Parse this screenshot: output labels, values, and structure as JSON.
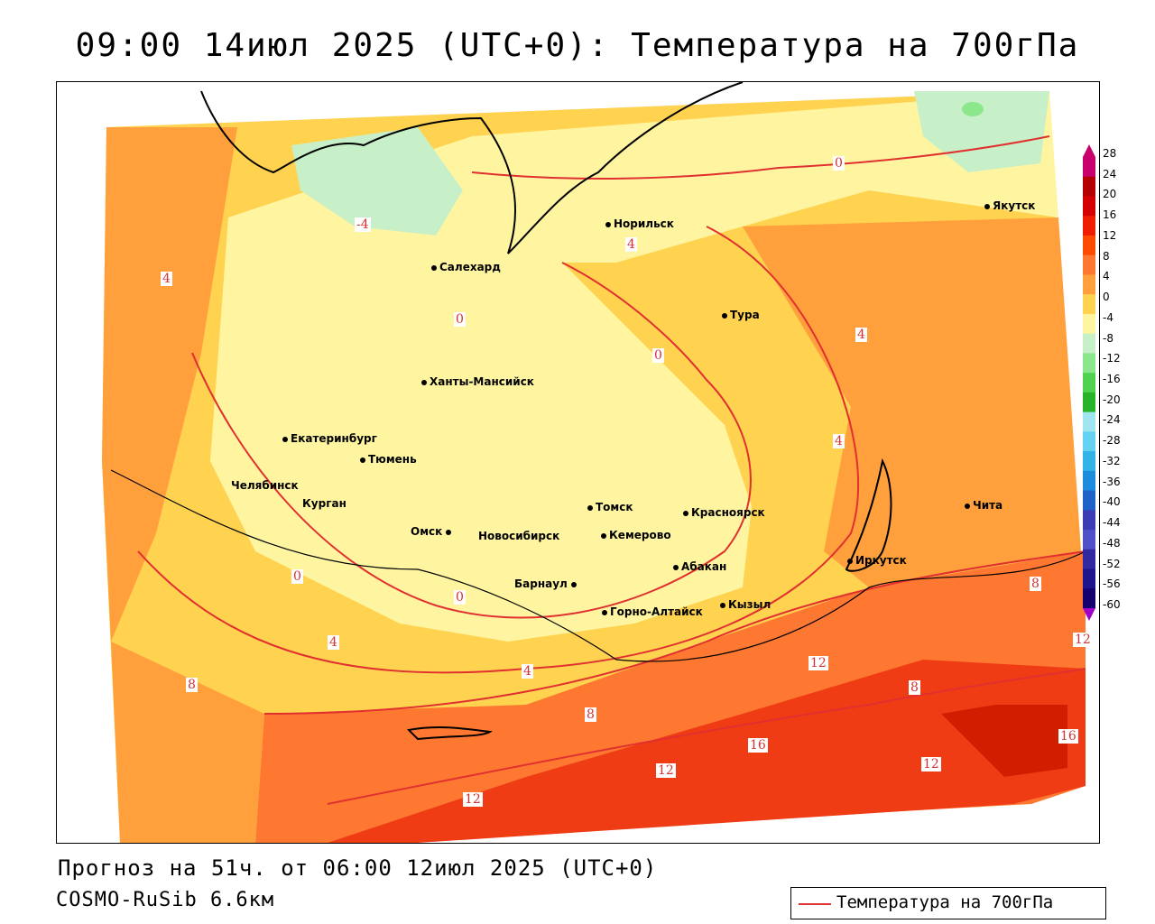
{
  "title": "09:00 14июл 2025 (UTC+0): Температура на 700гПа",
  "forecast_line": "Прогноз на 51ч. от 06:00 12июл 2025 (UTC+0)",
  "model_line": "COSMO-RuSib 6.6км",
  "legend": {
    "label": "Температура на 700гПа",
    "line_color": "#e03030"
  },
  "cities": [
    {
      "name": "Норильск"
    },
    {
      "name": "Якутск"
    },
    {
      "name": "Салехард"
    },
    {
      "name": "Тура"
    },
    {
      "name": "Ханты-Мансийск"
    },
    {
      "name": "Екатеринбург"
    },
    {
      "name": "Тюмень"
    },
    {
      "name": "Челябинск"
    },
    {
      "name": "Курган"
    },
    {
      "name": "Омск"
    },
    {
      "name": "Новосибирск"
    },
    {
      "name": "Томск"
    },
    {
      "name": "Кемерово"
    },
    {
      "name": "Красноярск"
    },
    {
      "name": "Барнаул"
    },
    {
      "name": "Абакан"
    },
    {
      "name": "Горно-Алтайск"
    },
    {
      "name": "Кызыл"
    },
    {
      "name": "Иркутск"
    },
    {
      "name": "Чита"
    }
  ],
  "contour_labels": [
    "-4",
    "0",
    "4",
    "8",
    "12",
    "16"
  ],
  "colorbar": {
    "ticks": [
      "28",
      "24",
      "20",
      "16",
      "12",
      "8",
      "4",
      "0",
      "-4",
      "-8",
      "-12",
      "-16",
      "-20",
      "-24",
      "-28",
      "-32",
      "-36",
      "-40",
      "-44",
      "-48",
      "-52",
      "-56",
      "-60"
    ],
    "colors": [
      "#c8006e",
      "#b40000",
      "#d20000",
      "#f01e00",
      "#ff4b00",
      "#ff7832",
      "#ffa03c",
      "#ffd250",
      "#fff5a0",
      "#c8f0c8",
      "#8ce68c",
      "#50d250",
      "#28b428",
      "#a0e6f0",
      "#64d2f0",
      "#32b4e6",
      "#1e8cdc",
      "#1e64c8",
      "#3c3cb4",
      "#5050c8",
      "#3228a0",
      "#1e148c",
      "#14006e"
    ]
  }
}
